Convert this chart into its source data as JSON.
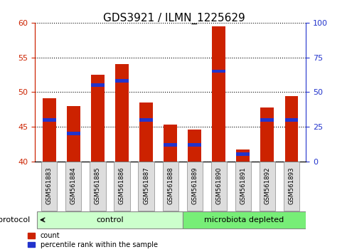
{
  "title": "GDS3921 / ILMN_1225629",
  "samples": [
    "GSM561883",
    "GSM561884",
    "GSM561885",
    "GSM561886",
    "GSM561887",
    "GSM561888",
    "GSM561889",
    "GSM561890",
    "GSM561891",
    "GSM561892",
    "GSM561893"
  ],
  "count_values": [
    49.1,
    48.0,
    52.5,
    54.0,
    48.5,
    45.3,
    44.6,
    59.5,
    41.7,
    47.8,
    49.4
  ],
  "percentile_values": [
    30.0,
    20.0,
    55.0,
    58.0,
    30.0,
    12.0,
    12.0,
    65.0,
    5.0,
    30.0,
    30.0
  ],
  "baseline": 40.0,
  "ylim_left": [
    40,
    60
  ],
  "ylim_right": [
    0,
    100
  ],
  "yticks_left": [
    40,
    45,
    50,
    55,
    60
  ],
  "yticks_right": [
    0,
    25,
    50,
    75,
    100
  ],
  "control_samples": 6,
  "control_label": "control",
  "depleted_label": "microbiota depleted",
  "protocol_label": "protocol",
  "legend_count": "count",
  "legend_pct": "percentile rank within the sample",
  "bar_color_red": "#CC2200",
  "bar_color_blue": "#2233CC",
  "control_bg": "#CCFFCC",
  "depleted_bg": "#77EE77",
  "sample_bg": "#DDDDDD",
  "title_fontsize": 11,
  "tick_fontsize": 8,
  "label_fontsize": 8,
  "bar_width": 0.55
}
